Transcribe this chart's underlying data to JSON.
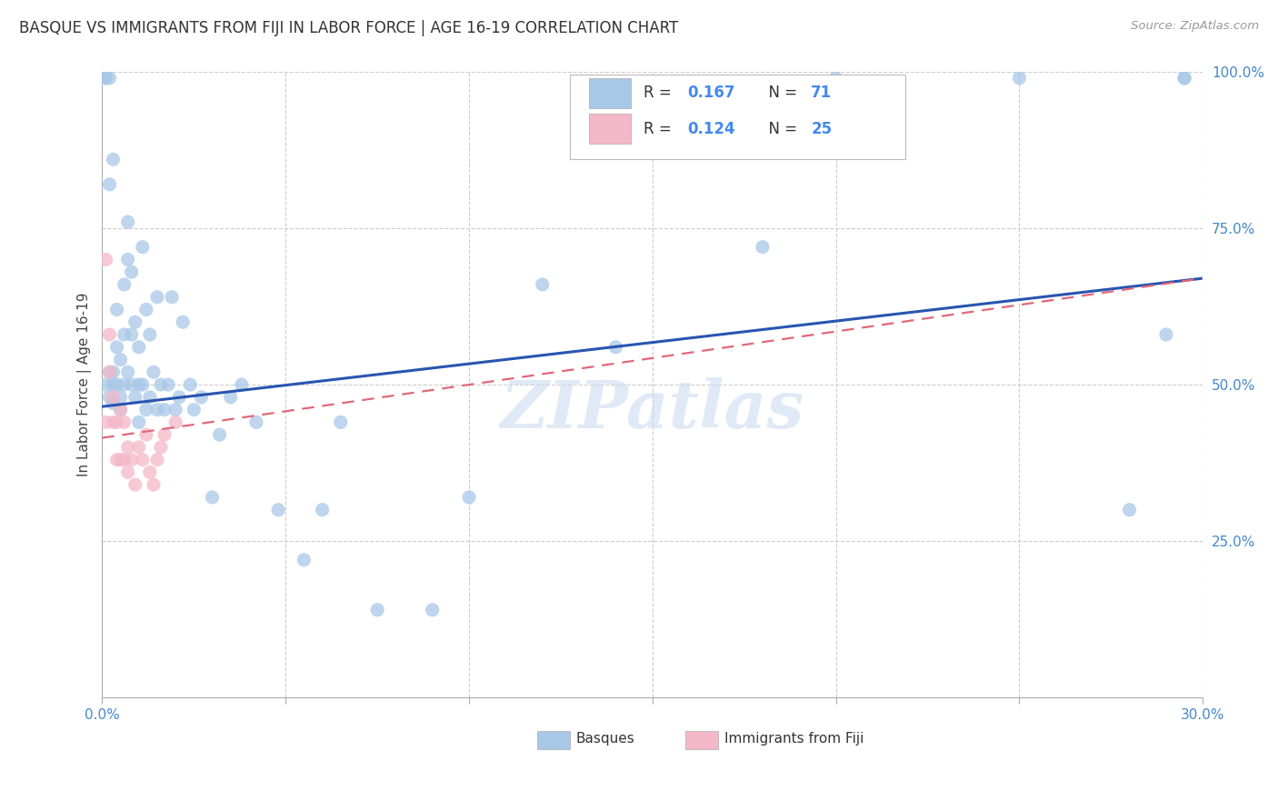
{
  "title": "BASQUE VS IMMIGRANTS FROM FIJI IN LABOR FORCE | AGE 16-19 CORRELATION CHART",
  "source": "Source: ZipAtlas.com",
  "ylabel": "In Labor Force | Age 16-19",
  "watermark": "ZIPatlas",
  "legend_label1": "Basques",
  "legend_label2": "Immigrants from Fiji",
  "r1": 0.167,
  "n1": 71,
  "r2": 0.124,
  "n2": 25,
  "xlim": [
    0.0,
    0.3
  ],
  "ylim": [
    0.0,
    1.0
  ],
  "color_basque": "#a8c8e8",
  "color_fiji": "#f4b8c8",
  "line_color_basque": "#2855b0",
  "line_color_fiji": "#e06878",
  "background_color": "#ffffff",
  "blue_line_x0": 0.0,
  "blue_line_y0": 0.465,
  "blue_line_x1": 0.3,
  "blue_line_y1": 0.67,
  "pink_line_x0": 0.0,
  "pink_line_y0": 0.415,
  "pink_line_x1": 0.3,
  "pink_line_y1": 0.67,
  "basque_x": [
    0.001,
    0.001,
    0.001,
    0.002,
    0.002,
    0.002,
    0.002,
    0.003,
    0.003,
    0.003,
    0.003,
    0.004,
    0.004,
    0.004,
    0.005,
    0.005,
    0.005,
    0.006,
    0.006,
    0.006,
    0.007,
    0.007,
    0.007,
    0.008,
    0.008,
    0.008,
    0.009,
    0.009,
    0.01,
    0.01,
    0.01,
    0.011,
    0.011,
    0.012,
    0.012,
    0.013,
    0.013,
    0.014,
    0.015,
    0.015,
    0.016,
    0.017,
    0.018,
    0.019,
    0.02,
    0.021,
    0.022,
    0.024,
    0.025,
    0.027,
    0.03,
    0.032,
    0.035,
    0.038,
    0.042,
    0.048,
    0.055,
    0.06,
    0.065,
    0.075,
    0.09,
    0.1,
    0.12,
    0.14,
    0.18,
    0.2,
    0.25,
    0.28,
    0.29,
    0.295,
    0.295
  ],
  "basque_y": [
    0.99,
    0.99,
    0.5,
    0.99,
    0.82,
    0.52,
    0.48,
    0.52,
    0.5,
    0.47,
    0.86,
    0.5,
    0.56,
    0.62,
    0.48,
    0.54,
    0.46,
    0.5,
    0.58,
    0.66,
    0.52,
    0.7,
    0.76,
    0.5,
    0.58,
    0.68,
    0.48,
    0.6,
    0.5,
    0.56,
    0.44,
    0.5,
    0.72,
    0.46,
    0.62,
    0.48,
    0.58,
    0.52,
    0.46,
    0.64,
    0.5,
    0.46,
    0.5,
    0.64,
    0.46,
    0.48,
    0.6,
    0.5,
    0.46,
    0.48,
    0.32,
    0.42,
    0.48,
    0.5,
    0.44,
    0.3,
    0.22,
    0.3,
    0.44,
    0.14,
    0.14,
    0.32,
    0.66,
    0.56,
    0.72,
    0.99,
    0.99,
    0.3,
    0.58,
    0.99,
    0.99
  ],
  "fiji_x": [
    0.001,
    0.001,
    0.002,
    0.002,
    0.003,
    0.003,
    0.004,
    0.004,
    0.005,
    0.005,
    0.006,
    0.006,
    0.007,
    0.007,
    0.008,
    0.009,
    0.01,
    0.011,
    0.012,
    0.013,
    0.014,
    0.015,
    0.016,
    0.017,
    0.02
  ],
  "fiji_y": [
    0.7,
    0.44,
    0.58,
    0.52,
    0.44,
    0.48,
    0.38,
    0.44,
    0.38,
    0.46,
    0.38,
    0.44,
    0.4,
    0.36,
    0.38,
    0.34,
    0.4,
    0.38,
    0.42,
    0.36,
    0.34,
    0.38,
    0.4,
    0.42,
    0.44
  ]
}
